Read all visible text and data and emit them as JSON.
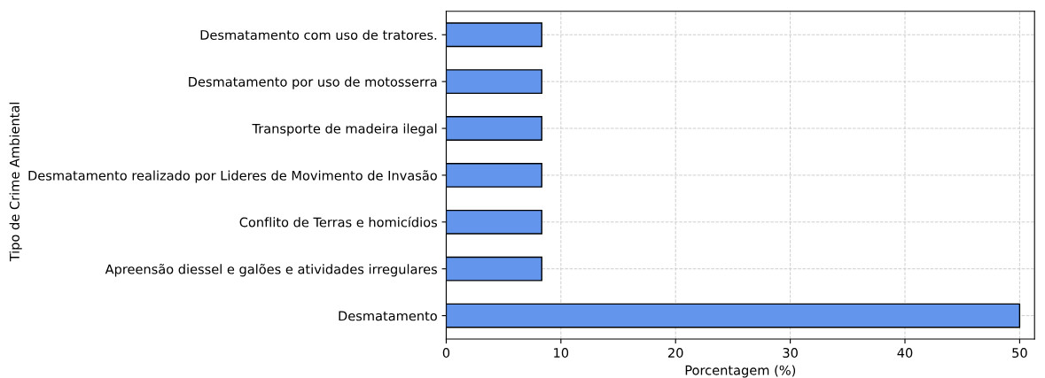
{
  "chart_data": {
    "type": "bar",
    "orientation": "horizontal",
    "xlabel": "Porcentagem (%)",
    "ylabel": "Tipo de Crime Ambiental",
    "categories": [
      "Desmatamento com uso de tratores.",
      "Desmatamento por uso de motosserra",
      "Transporte de madeira ilegal",
      "Desmatamento realizado por Lideres de Movimento de Invasão",
      "Conflito de Terras e homicídios",
      "Apreensão diessel e galões e atividades irregulares",
      "Desmatamento"
    ],
    "values": [
      8.33,
      8.33,
      8.33,
      8.33,
      8.33,
      8.33,
      50
    ],
    "color": "#6495ed",
    "xlim": [
      0,
      51.3
    ],
    "xticks": [
      0,
      10,
      20,
      30,
      40,
      50
    ],
    "grid": true
  }
}
